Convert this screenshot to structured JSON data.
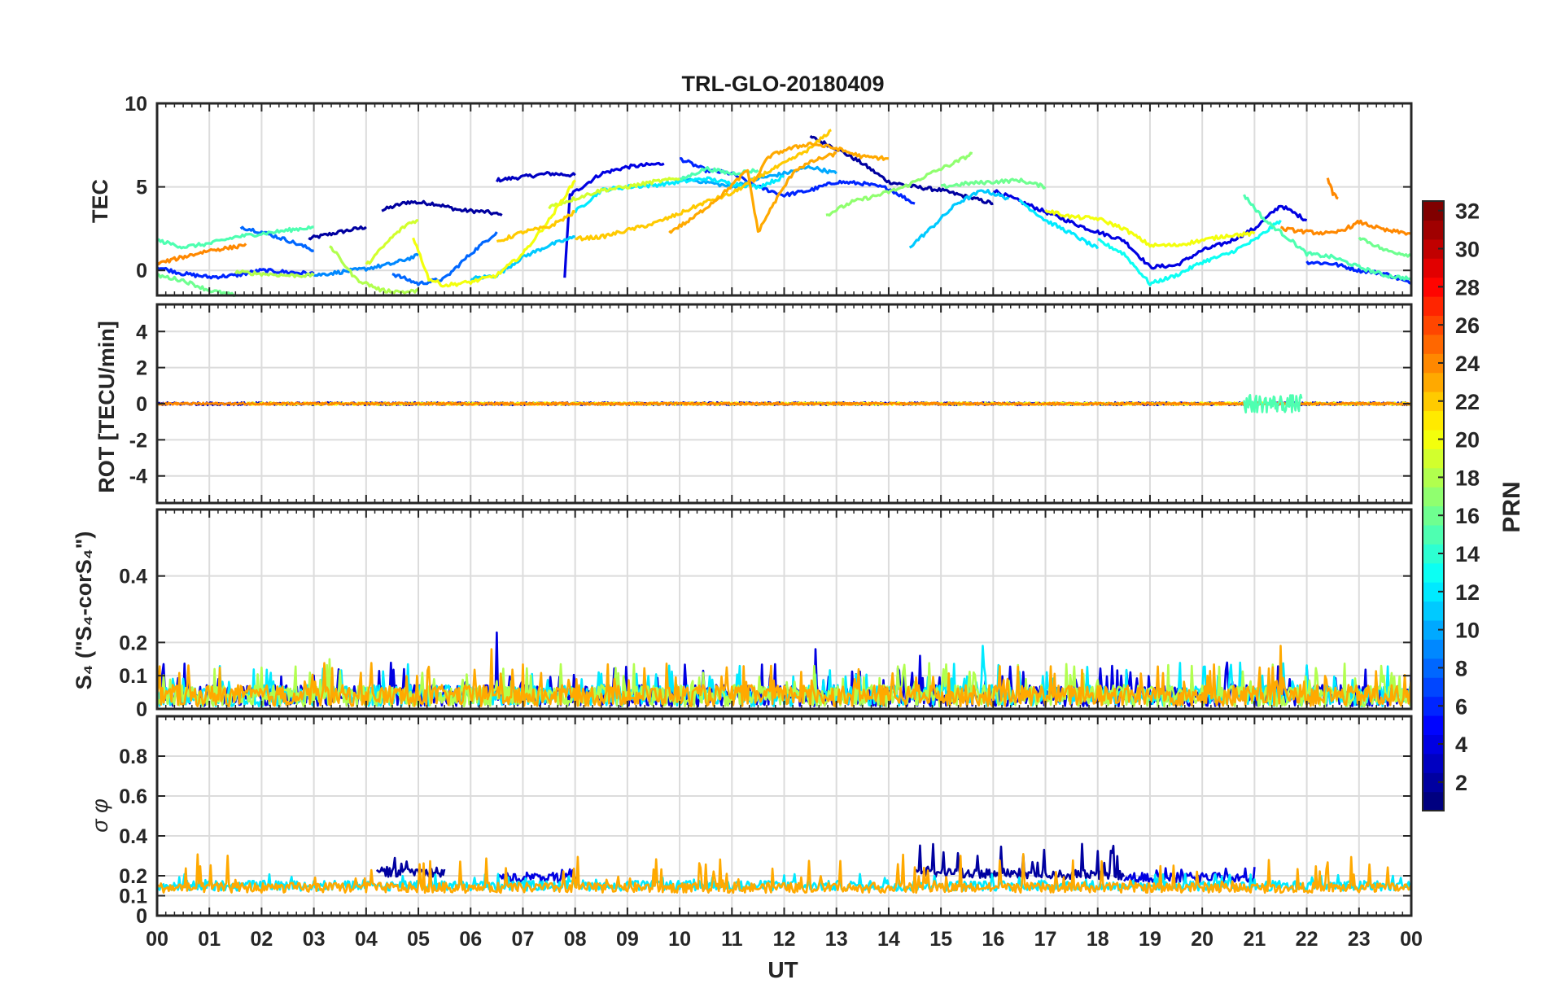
{
  "figure": {
    "title": "TRL-GLO-20180409",
    "xlabel": "UT"
  },
  "colorbar": {
    "label": "PRN",
    "min": 1,
    "max": 32,
    "ticks": [
      "2",
      "4",
      "6",
      "8",
      "10",
      "12",
      "14",
      "16",
      "18",
      "20",
      "22",
      "24",
      "26",
      "28",
      "30",
      "32"
    ]
  },
  "x_axis": {
    "range": [
      0,
      24
    ],
    "tick_labels": [
      "00",
      "01",
      "02",
      "03",
      "04",
      "05",
      "06",
      "07",
      "08",
      "09",
      "10",
      "11",
      "12",
      "13",
      "14",
      "15",
      "16",
      "17",
      "18",
      "19",
      "20",
      "21",
      "22",
      "23",
      "00"
    ]
  },
  "chart_data": [
    {
      "type": "line",
      "name": "TEC panel",
      "ylabel": "TEC",
      "ylim": [
        -1.5,
        10
      ],
      "yticks": [
        "0",
        "5",
        "10"
      ],
      "series": [
        {
          "prn": 2,
          "x": [
            2.9,
            3.5,
            4.0
          ],
          "y": [
            1.9,
            2.3,
            2.6
          ]
        },
        {
          "prn": 2,
          "x": [
            4.3,
            4.8,
            5.3,
            5.8,
            6.3,
            6.6
          ],
          "y": [
            3.6,
            4.1,
            4.0,
            3.6,
            3.5,
            3.3
          ]
        },
        {
          "prn": 3,
          "x": [
            6.5,
            7.0,
            7.5,
            8.0
          ],
          "y": [
            5.4,
            5.6,
            5.8,
            5.7
          ]
        },
        {
          "prn": 2,
          "x": [
            12.5,
            13.0,
            13.5,
            14.0,
            14.5,
            15.0,
            16.0
          ],
          "y": [
            8.0,
            7.3,
            6.4,
            5.3,
            5.0,
            4.8,
            4.0
          ]
        },
        {
          "prn": 4,
          "x": [
            7.8,
            7.9,
            8.5,
            9.0,
            9.7
          ],
          "y": [
            -0.4,
            4.5,
            5.8,
            6.2,
            6.4
          ]
        },
        {
          "prn": 4,
          "x": [
            16.0,
            17.0,
            17.8,
            18.5,
            19.0,
            19.5,
            20.0,
            20.5,
            21.0,
            21.5,
            22.0
          ],
          "y": [
            4.8,
            3.5,
            2.5,
            1.8,
            0.2,
            0.3,
            1.2,
            1.7,
            2.5,
            3.9,
            3.0
          ]
        },
        {
          "prn": 6,
          "x": [
            0.0,
            0.5,
            1.0,
            1.5,
            2.0,
            3.0
          ],
          "y": [
            0.2,
            -0.2,
            -0.4,
            -0.3,
            0.0,
            -0.2
          ]
        },
        {
          "prn": 6,
          "x": [
            10.0,
            10.5,
            11.0,
            11.5,
            12.0,
            12.5,
            13.0,
            13.5,
            14.0,
            14.5
          ],
          "y": [
            6.7,
            6.0,
            5.8,
            5.0,
            4.5,
            4.8,
            5.3,
            5.2,
            4.9,
            4.0
          ]
        },
        {
          "prn": 6,
          "x": [
            22.0,
            22.5,
            23.0,
            23.5,
            24.0
          ],
          "y": [
            0.5,
            0.4,
            0.0,
            -0.2,
            -0.8
          ]
        },
        {
          "prn": 8,
          "x": [
            1.6,
            2.0,
            2.5,
            3.0
          ],
          "y": [
            2.6,
            2.3,
            1.8,
            1.2
          ]
        },
        {
          "prn": 8,
          "x": [
            4.5,
            5.0,
            5.5,
            6.0,
            6.5
          ],
          "y": [
            -0.2,
            -0.8,
            -0.5,
            1.0,
            2.3
          ]
        },
        {
          "prn": 9,
          "x": [
            3.0,
            3.5,
            4.0,
            4.5,
            5.0
          ],
          "y": [
            -0.3,
            -0.1,
            0.1,
            0.4,
            0.9
          ]
        },
        {
          "prn": 10,
          "x": [
            10.0,
            10.5,
            11.0,
            11.5,
            12.0,
            12.5,
            13.0
          ],
          "y": [
            5.5,
            5.3,
            5.0,
            5.5,
            5.8,
            6.2,
            5.8
          ]
        },
        {
          "prn": 11,
          "x": [
            6.0,
            6.5,
            7.0,
            7.5,
            8.0
          ],
          "y": [
            -0.5,
            -0.3,
            0.8,
            1.5,
            2.0
          ]
        },
        {
          "prn": 11,
          "x": [
            14.4,
            14.8,
            15.3,
            15.8,
            16.3
          ],
          "y": [
            1.4,
            2.5,
            4.0,
            4.8,
            4.3
          ]
        },
        {
          "prn": 12,
          "x": [
            8.0,
            8.5,
            9.0,
            9.5,
            10.0,
            10.5,
            11.0,
            11.5,
            12.0
          ],
          "y": [
            3.5,
            4.8,
            5.0,
            5.1,
            5.3,
            5.5,
            5.2,
            5.0,
            5.6
          ]
        },
        {
          "prn": 12,
          "x": [
            16.5,
            17.0,
            17.5,
            18.0
          ],
          "y": [
            4.2,
            3.0,
            2.2,
            1.3
          ]
        },
        {
          "prn": 13,
          "x": [
            18.0,
            18.5,
            19.0,
            19.5,
            20.0,
            20.5,
            21.0,
            21.5
          ],
          "y": [
            1.8,
            1.0,
            -0.8,
            -0.3,
            0.5,
            1.0,
            1.8,
            3.0
          ]
        },
        {
          "prn": 15,
          "x": [
            0.0,
            0.5,
            1.0,
            1.5,
            2.0,
            2.5,
            3.0
          ],
          "y": [
            1.8,
            1.4,
            1.6,
            2.0,
            2.2,
            2.4,
            2.6
          ]
        },
        {
          "prn": 15,
          "x": [
            10.0,
            10.5,
            11.0,
            11.5
          ],
          "y": [
            5.4,
            6.1,
            5.8,
            6.0
          ]
        },
        {
          "prn": 15,
          "x": [
            20.8,
            21.2,
            21.7,
            22.0,
            22.5,
            23.0,
            23.5,
            24.0
          ],
          "y": [
            4.5,
            3.0,
            1.8,
            1.0,
            0.8,
            0.2,
            -0.3,
            -0.5
          ]
        },
        {
          "prn": 16,
          "x": [
            0.0,
            0.5,
            1.0,
            1.5
          ],
          "y": [
            -0.3,
            -0.6,
            -1.2,
            -1.5
          ]
        },
        {
          "prn": 16,
          "x": [
            15.0,
            15.5,
            16.0,
            16.5,
            17.0
          ],
          "y": [
            5.0,
            5.2,
            5.3,
            5.4,
            5.0
          ]
        },
        {
          "prn": 16,
          "x": [
            23.0,
            23.5,
            24.0
          ],
          "y": [
            2.0,
            1.2,
            0.9
          ]
        },
        {
          "prn": 17,
          "x": [
            12.8,
            13.3,
            13.8,
            14.3,
            14.8,
            15.3,
            15.6
          ],
          "y": [
            3.3,
            4.1,
            4.5,
            5.0,
            5.8,
            6.5,
            7.0
          ]
        },
        {
          "prn": 18,
          "x": [
            1.5,
            2.0,
            2.5,
            3.0
          ],
          "y": [
            -0.1,
            -0.2,
            -0.3,
            -0.3
          ]
        },
        {
          "prn": 18,
          "x": [
            3.3,
            3.8,
            4.3,
            4.8,
            5.0
          ],
          "y": [
            1.5,
            -0.5,
            -1.2,
            -1.3,
            -1.2
          ]
        },
        {
          "prn": 19,
          "x": [
            4.0,
            4.5,
            4.8,
            5.0
          ],
          "y": [
            0.3,
            2.0,
            2.8,
            3.0
          ]
        },
        {
          "prn": 19,
          "x": [
            7.5,
            8.0,
            8.5,
            9.0,
            9.5,
            10.0
          ],
          "y": [
            3.8,
            4.3,
            4.8,
            5.0,
            5.3,
            5.5
          ]
        },
        {
          "prn": 20,
          "x": [
            4.9,
            5.2,
            5.5,
            6.0,
            6.5,
            7.0,
            7.5,
            8.0
          ],
          "y": [
            2.0,
            -0.5,
            -0.9,
            -0.7,
            -0.3,
            1.0,
            3.0,
            5.4
          ]
        },
        {
          "prn": 20,
          "x": [
            17.0,
            17.5,
            18.0,
            18.5,
            19.0,
            19.5,
            20.0,
            20.5,
            21.0
          ],
          "y": [
            3.6,
            3.2,
            3.1,
            2.5,
            1.5,
            1.5,
            1.8,
            2.1,
            2.2
          ]
        },
        {
          "prn": 22,
          "x": [
            6.5,
            7.0,
            7.5,
            8.0
          ],
          "y": [
            1.7,
            2.3,
            2.6,
            3.5
          ]
        },
        {
          "prn": 22,
          "x": [
            8.0,
            8.5,
            9.0,
            9.5,
            10.0,
            10.5,
            11.0,
            11.5,
            12.0,
            12.5,
            12.9
          ],
          "y": [
            1.9,
            2.0,
            2.4,
            2.8,
            3.4,
            4.1,
            4.6,
            5.6,
            6.4,
            7.3,
            8.4
          ]
        },
        {
          "prn": 23,
          "x": [
            9.8,
            10.2,
            10.8,
            11.3,
            11.5,
            11.8,
            12.2,
            12.6,
            13.0
          ],
          "y": [
            2.3,
            3.0,
            4.5,
            6.0,
            2.3,
            4.0,
            6.0,
            6.6,
            7.0
          ]
        },
        {
          "prn": 23,
          "x": [
            11.4,
            11.7,
            12.0,
            12.5,
            13.0,
            13.5,
            14.0
          ],
          "y": [
            5.2,
            6.8,
            7.2,
            7.6,
            7.3,
            6.8,
            6.7
          ]
        },
        {
          "prn": 24,
          "x": [
            0.0,
            0.5,
            1.0,
            1.5,
            1.7
          ],
          "y": [
            0.4,
            0.8,
            1.2,
            1.4,
            1.6
          ]
        },
        {
          "prn": 24,
          "x": [
            21.5,
            22.0,
            22.5,
            22.9,
            23.0,
            23.5,
            24.0
          ],
          "y": [
            2.5,
            2.3,
            2.2,
            2.7,
            2.9,
            2.4,
            2.2
          ]
        },
        {
          "prn": 24,
          "x": [
            22.4,
            22.5,
            22.6
          ],
          "y": [
            5.5,
            4.6,
            4.3
          ]
        }
      ]
    },
    {
      "type": "line",
      "name": "ROT panel",
      "ylabel": "ROT [TECU/min]",
      "ylim": [
        -5.5,
        5.5
      ],
      "yticks": [
        "-4",
        "-2",
        "0",
        "2",
        "4"
      ],
      "series": [
        {
          "prn": 3,
          "x": [
            0,
            24
          ],
          "y": [
            0,
            0
          ],
          "noise": 0.08
        },
        {
          "prn": 20,
          "x": [
            1.7,
            24
          ],
          "y": [
            0,
            0
          ],
          "noise": 0.07
        },
        {
          "prn": 24,
          "x": [
            0,
            24
          ],
          "y": [
            0,
            0
          ],
          "noise": 0.06
        },
        {
          "prn": 15,
          "x": [
            20.8,
            21.9
          ],
          "y": [
            0,
            0
          ],
          "noise": 0.5
        }
      ]
    },
    {
      "type": "line",
      "name": "S4 panel",
      "ylabel": "S₄ (\"S₄-corS₄\")",
      "ylim": [
        0,
        0.6
      ],
      "yticks": [
        "0",
        "0.1",
        "0.2",
        "0.4"
      ],
      "series": [
        {
          "prn": 4,
          "x": [
            0,
            24
          ],
          "y": [
            0.04,
            0.04
          ],
          "spikes": [
            [
              6.5,
              0.23
            ],
            [
              12.6,
              0.18
            ],
            [
              14.6,
              0.16
            ]
          ]
        },
        {
          "prn": 12,
          "x": [
            0,
            24
          ],
          "y": [
            0.04,
            0.04
          ],
          "spikes": [
            [
              15.8,
              0.19
            ]
          ]
        },
        {
          "prn": 18,
          "x": [
            0,
            24
          ],
          "y": [
            0.04,
            0.04
          ],
          "spikes": [
            [
              3.3,
              0.15
            ]
          ]
        },
        {
          "prn": 23,
          "x": [
            0,
            24
          ],
          "y": [
            0.04,
            0.04
          ],
          "spikes": [
            [
              21.5,
              0.19
            ],
            [
              6.4,
              0.18
            ]
          ]
        }
      ]
    },
    {
      "type": "line",
      "name": "sigma phi panel",
      "ylabel": "σ φ",
      "ylim": [
        0,
        1
      ],
      "yticks": [
        "0",
        "0.1",
        "0.2",
        "0.4",
        "0.6",
        "0.8"
      ],
      "series": [
        {
          "prn": 2,
          "x": [
            4.2,
            5.5
          ],
          "y": [
            0.22,
            0.22
          ],
          "peak": 0.32
        },
        {
          "prn": 2,
          "x": [
            14.5,
            18.5
          ],
          "y": [
            0.22,
            0.2
          ],
          "peak": 0.36
        },
        {
          "prn": 4,
          "x": [
            6.5,
            8.0
          ],
          "y": [
            0.19,
            0.19
          ],
          "peak": 0.24
        },
        {
          "prn": 4,
          "x": [
            18.5,
            21.0
          ],
          "y": [
            0.19,
            0.19
          ],
          "peak": 0.25
        },
        {
          "prn": 12,
          "x": [
            0,
            24
          ],
          "y": [
            0.15,
            0.15
          ],
          "peak": 0.21
        },
        {
          "prn": 23,
          "x": [
            0,
            24
          ],
          "y": [
            0.14,
            0.14
          ],
          "peak": 0.31
        }
      ]
    }
  ]
}
